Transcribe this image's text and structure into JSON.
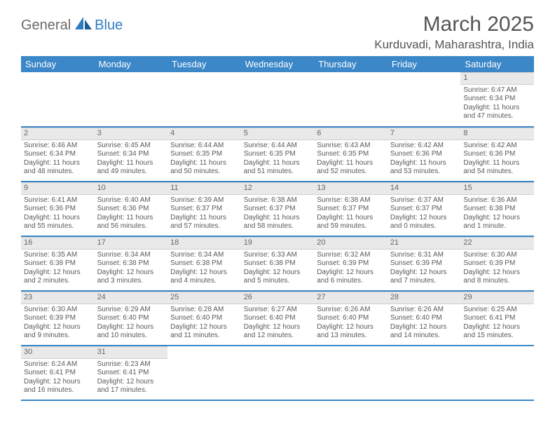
{
  "brand": {
    "part1": "General",
    "part2": "Blue"
  },
  "title": "March 2025",
  "location": "Kurduvadi, Maharashtra, India",
  "colors": {
    "header_bg": "#3b87c8",
    "header_text": "#ffffff",
    "daynum_bg": "#e9e9e9",
    "text": "#5a5a5a",
    "brand_blue": "#2f7cc2"
  },
  "dayHeaders": [
    "Sunday",
    "Monday",
    "Tuesday",
    "Wednesday",
    "Thursday",
    "Friday",
    "Saturday"
  ],
  "weeks": [
    [
      null,
      null,
      null,
      null,
      null,
      null,
      {
        "n": "1",
        "sr": "Sunrise: 6:47 AM",
        "ss": "Sunset: 6:34 PM",
        "d1": "Daylight: 11 hours",
        "d2": "and 47 minutes."
      }
    ],
    [
      {
        "n": "2",
        "sr": "Sunrise: 6:46 AM",
        "ss": "Sunset: 6:34 PM",
        "d1": "Daylight: 11 hours",
        "d2": "and 48 minutes."
      },
      {
        "n": "3",
        "sr": "Sunrise: 6:45 AM",
        "ss": "Sunset: 6:34 PM",
        "d1": "Daylight: 11 hours",
        "d2": "and 49 minutes."
      },
      {
        "n": "4",
        "sr": "Sunrise: 6:44 AM",
        "ss": "Sunset: 6:35 PM",
        "d1": "Daylight: 11 hours",
        "d2": "and 50 minutes."
      },
      {
        "n": "5",
        "sr": "Sunrise: 6:44 AM",
        "ss": "Sunset: 6:35 PM",
        "d1": "Daylight: 11 hours",
        "d2": "and 51 minutes."
      },
      {
        "n": "6",
        "sr": "Sunrise: 6:43 AM",
        "ss": "Sunset: 6:35 PM",
        "d1": "Daylight: 11 hours",
        "d2": "and 52 minutes."
      },
      {
        "n": "7",
        "sr": "Sunrise: 6:42 AM",
        "ss": "Sunset: 6:36 PM",
        "d1": "Daylight: 11 hours",
        "d2": "and 53 minutes."
      },
      {
        "n": "8",
        "sr": "Sunrise: 6:42 AM",
        "ss": "Sunset: 6:36 PM",
        "d1": "Daylight: 11 hours",
        "d2": "and 54 minutes."
      }
    ],
    [
      {
        "n": "9",
        "sr": "Sunrise: 6:41 AM",
        "ss": "Sunset: 6:36 PM",
        "d1": "Daylight: 11 hours",
        "d2": "and 55 minutes."
      },
      {
        "n": "10",
        "sr": "Sunrise: 6:40 AM",
        "ss": "Sunset: 6:36 PM",
        "d1": "Daylight: 11 hours",
        "d2": "and 56 minutes."
      },
      {
        "n": "11",
        "sr": "Sunrise: 6:39 AM",
        "ss": "Sunset: 6:37 PM",
        "d1": "Daylight: 11 hours",
        "d2": "and 57 minutes."
      },
      {
        "n": "12",
        "sr": "Sunrise: 6:38 AM",
        "ss": "Sunset: 6:37 PM",
        "d1": "Daylight: 11 hours",
        "d2": "and 58 minutes."
      },
      {
        "n": "13",
        "sr": "Sunrise: 6:38 AM",
        "ss": "Sunset: 6:37 PM",
        "d1": "Daylight: 11 hours",
        "d2": "and 59 minutes."
      },
      {
        "n": "14",
        "sr": "Sunrise: 6:37 AM",
        "ss": "Sunset: 6:37 PM",
        "d1": "Daylight: 12 hours",
        "d2": "and 0 minutes."
      },
      {
        "n": "15",
        "sr": "Sunrise: 6:36 AM",
        "ss": "Sunset: 6:38 PM",
        "d1": "Daylight: 12 hours",
        "d2": "and 1 minute."
      }
    ],
    [
      {
        "n": "16",
        "sr": "Sunrise: 6:35 AM",
        "ss": "Sunset: 6:38 PM",
        "d1": "Daylight: 12 hours",
        "d2": "and 2 minutes."
      },
      {
        "n": "17",
        "sr": "Sunrise: 6:34 AM",
        "ss": "Sunset: 6:38 PM",
        "d1": "Daylight: 12 hours",
        "d2": "and 3 minutes."
      },
      {
        "n": "18",
        "sr": "Sunrise: 6:34 AM",
        "ss": "Sunset: 6:38 PM",
        "d1": "Daylight: 12 hours",
        "d2": "and 4 minutes."
      },
      {
        "n": "19",
        "sr": "Sunrise: 6:33 AM",
        "ss": "Sunset: 6:38 PM",
        "d1": "Daylight: 12 hours",
        "d2": "and 5 minutes."
      },
      {
        "n": "20",
        "sr": "Sunrise: 6:32 AM",
        "ss": "Sunset: 6:39 PM",
        "d1": "Daylight: 12 hours",
        "d2": "and 6 minutes."
      },
      {
        "n": "21",
        "sr": "Sunrise: 6:31 AM",
        "ss": "Sunset: 6:39 PM",
        "d1": "Daylight: 12 hours",
        "d2": "and 7 minutes."
      },
      {
        "n": "22",
        "sr": "Sunrise: 6:30 AM",
        "ss": "Sunset: 6:39 PM",
        "d1": "Daylight: 12 hours",
        "d2": "and 8 minutes."
      }
    ],
    [
      {
        "n": "23",
        "sr": "Sunrise: 6:30 AM",
        "ss": "Sunset: 6:39 PM",
        "d1": "Daylight: 12 hours",
        "d2": "and 9 minutes."
      },
      {
        "n": "24",
        "sr": "Sunrise: 6:29 AM",
        "ss": "Sunset: 6:40 PM",
        "d1": "Daylight: 12 hours",
        "d2": "and 10 minutes."
      },
      {
        "n": "25",
        "sr": "Sunrise: 6:28 AM",
        "ss": "Sunset: 6:40 PM",
        "d1": "Daylight: 12 hours",
        "d2": "and 11 minutes."
      },
      {
        "n": "26",
        "sr": "Sunrise: 6:27 AM",
        "ss": "Sunset: 6:40 PM",
        "d1": "Daylight: 12 hours",
        "d2": "and 12 minutes."
      },
      {
        "n": "27",
        "sr": "Sunrise: 6:26 AM",
        "ss": "Sunset: 6:40 PM",
        "d1": "Daylight: 12 hours",
        "d2": "and 13 minutes."
      },
      {
        "n": "28",
        "sr": "Sunrise: 6:26 AM",
        "ss": "Sunset: 6:40 PM",
        "d1": "Daylight: 12 hours",
        "d2": "and 14 minutes."
      },
      {
        "n": "29",
        "sr": "Sunrise: 6:25 AM",
        "ss": "Sunset: 6:41 PM",
        "d1": "Daylight: 12 hours",
        "d2": "and 15 minutes."
      }
    ],
    [
      {
        "n": "30",
        "sr": "Sunrise: 6:24 AM",
        "ss": "Sunset: 6:41 PM",
        "d1": "Daylight: 12 hours",
        "d2": "and 16 minutes."
      },
      {
        "n": "31",
        "sr": "Sunrise: 6:23 AM",
        "ss": "Sunset: 6:41 PM",
        "d1": "Daylight: 12 hours",
        "d2": "and 17 minutes."
      },
      null,
      null,
      null,
      null,
      null
    ]
  ]
}
